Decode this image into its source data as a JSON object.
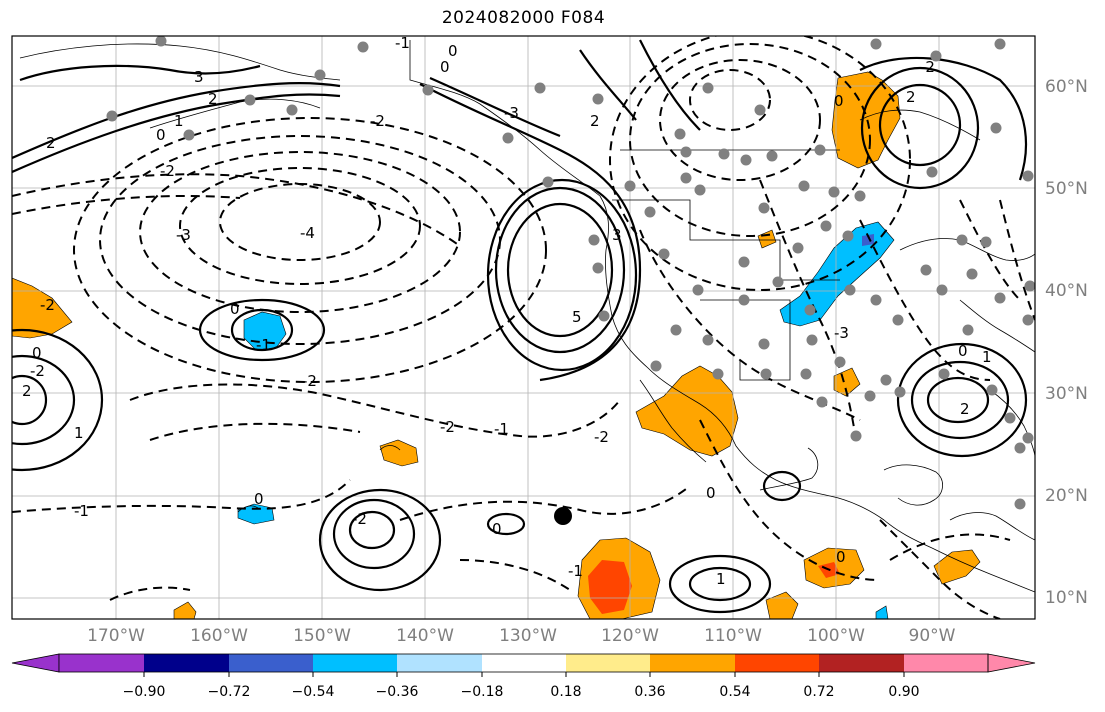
{
  "map": {
    "title": "2024082000 F084",
    "lon_ticks": [
      "170°W",
      "160°W",
      "150°W",
      "140°W",
      "130°W",
      "120°W",
      "110°W",
      "100°W",
      "90°W"
    ],
    "lat_ticks": [
      "60°N",
      "50°N",
      "40°N",
      "30°N",
      "20°N",
      "10°N"
    ],
    "contour_labels": [
      "0",
      "-1",
      "0",
      "3",
      "2",
      "2",
      "-3",
      "-2",
      "2",
      "0",
      "1",
      "-2",
      "-3",
      "-4",
      "0",
      "-1",
      "-2",
      "-1",
      "-2",
      "-2",
      "1",
      "0",
      "-2",
      "2",
      "-1",
      "0",
      "-2",
      "5",
      "3",
      "2",
      "0",
      "-2",
      "1",
      "0",
      "0",
      "0",
      "1",
      "2",
      "-2",
      "0",
      "-3",
      "-1"
    ],
    "colorbar": {
      "ticks": [
        "−0.90",
        "−0.72",
        "−0.54",
        "−0.36",
        "−0.18",
        "0.18",
        "0.36",
        "0.54",
        "0.72",
        "0.90"
      ],
      "colors": [
        "#9932cc",
        "#00008b",
        "#3a5fcd",
        "#00bfff",
        "#b0e2ff",
        "#ffffff",
        "#ffec8b",
        "#ffa500",
        "#ff4500",
        "#b22222",
        "#ff88aa"
      ]
    },
    "colors": {
      "positive_anomaly": "#ffa500",
      "strong_positive_anomaly": "#ff4500",
      "negative_anomaly": "#00bfff",
      "coastline": "#000000",
      "station_dot": "#808080",
      "grid": "#b3b3b3"
    }
  }
}
